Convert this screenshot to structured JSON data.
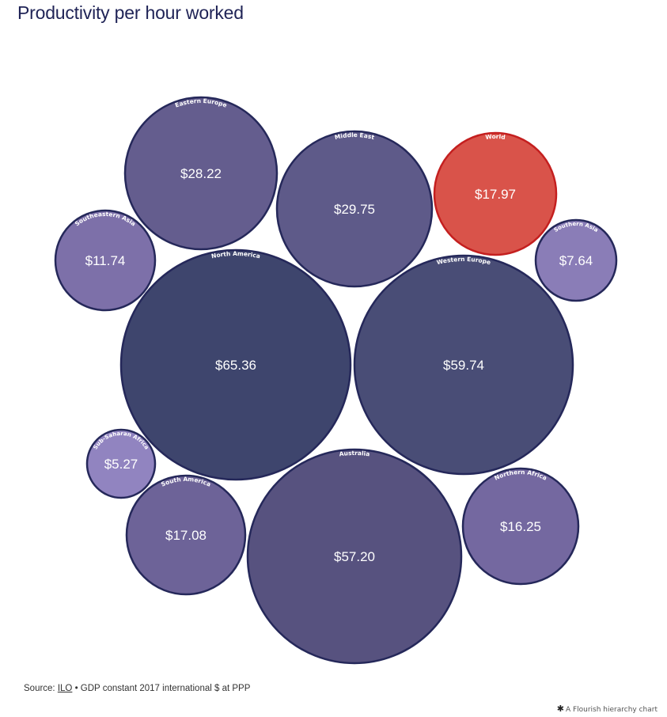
{
  "chart_data": {
    "type": "bubble",
    "title": "Productivity per hour worked",
    "items": [
      {
        "name": "North America",
        "value": "$65.36",
        "color": "#3e456d"
      },
      {
        "name": "Western Europe",
        "value": "$59.74",
        "color": "#494d76"
      },
      {
        "name": "Australia",
        "value": "$57.20",
        "color": "#57527f"
      },
      {
        "name": "Middle East",
        "value": "$29.75",
        "color": "#5e5a89"
      },
      {
        "name": "Eastern Europe",
        "value": "$28.22",
        "color": "#645d8e"
      },
      {
        "name": "World",
        "value": "$17.97",
        "color": "#d9534a"
      },
      {
        "name": "South America",
        "value": "$17.08",
        "color": "#6d6398"
      },
      {
        "name": "Northern Africa",
        "value": "$16.25",
        "color": "#7468a0"
      },
      {
        "name": "Southeastern Asia",
        "value": "$11.74",
        "color": "#7d70a9"
      },
      {
        "name": "Southern Asia",
        "value": "$7.64",
        "color": "#8a7db7"
      },
      {
        "name": "Sub-Saharan Africa",
        "value": "$5.27",
        "color": "#9184c0"
      }
    ]
  },
  "footer": {
    "source_prefix": "Source: ",
    "source_link": "ILO",
    "source_rest": " • GDP constant 2017 international $ at PPP"
  },
  "credit": {
    "star": "✱",
    "text": "A Flourish hierarchy chart"
  }
}
